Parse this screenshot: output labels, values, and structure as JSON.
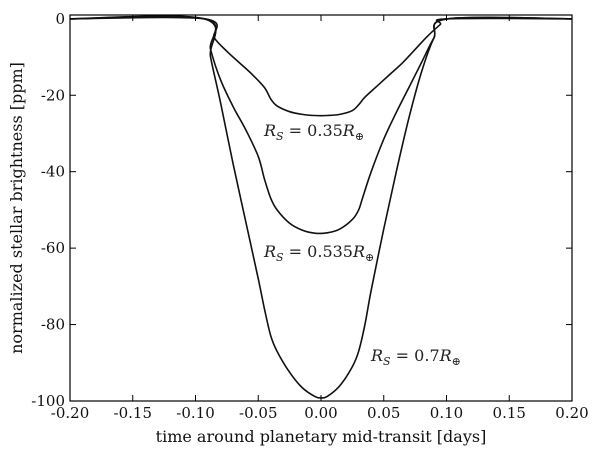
{
  "chart_data": {
    "type": "line",
    "xlabel": "time around planetary mid-transit [days]",
    "ylabel": "normalized stellar brightness [ppm]",
    "xlim": [
      -0.2,
      0.2
    ],
    "ylim": [
      -100,
      1
    ],
    "xticks": [
      -0.2,
      -0.15,
      -0.1,
      -0.05,
      0.0,
      0.05,
      0.1,
      0.15,
      0.2
    ],
    "xtick_labels": [
      "-0.20",
      "-0.15",
      "-0.10",
      "-0.05",
      "0.00",
      "0.05",
      "0.10",
      "0.15",
      "0.20"
    ],
    "yticks": [
      0,
      -20,
      -40,
      -60,
      -80,
      -100
    ],
    "ytick_labels": [
      "0",
      "-20",
      "-40",
      "-60",
      "-80",
      "-100"
    ],
    "grid": false,
    "series": [
      {
        "label": "R_S = 0.35R_⊕",
        "x": [
          -0.2,
          -0.093,
          -0.085,
          -0.075,
          -0.065,
          -0.055,
          -0.045,
          -0.04,
          -0.035,
          -0.025,
          -0.015,
          -0.005,
          0.005,
          0.015,
          0.025,
          0.03,
          0.035,
          0.045,
          0.055,
          0.065,
          0.075,
          0.085,
          0.095,
          0.101,
          0.2
        ],
        "y": [
          0,
          0,
          -5,
          -8.5,
          -11.5,
          -14.5,
          -18,
          -21,
          -22.8,
          -24.3,
          -25.0,
          -25.3,
          -25.3,
          -25.0,
          -24.0,
          -22.5,
          -20.5,
          -17.5,
          -14.5,
          -11.5,
          -8,
          -4.5,
          -1.5,
          0,
          0
        ]
      },
      {
        "label": "R_S = 0.535R_⊕",
        "x": [
          -0.2,
          -0.093,
          -0.088,
          -0.08,
          -0.07,
          -0.06,
          -0.05,
          -0.045,
          -0.04,
          -0.035,
          -0.025,
          -0.015,
          -0.005,
          0.005,
          0.015,
          0.025,
          0.03,
          0.033,
          0.04,
          0.05,
          0.06,
          0.07,
          0.08,
          0.09,
          0.101,
          0.2
        ],
        "y": [
          0,
          0,
          -8,
          -16,
          -23,
          -29,
          -36,
          -42,
          -47,
          -50,
          -53.5,
          -55.3,
          -56.1,
          -56.0,
          -55.0,
          -52.5,
          -50,
          -47,
          -40,
          -31.5,
          -24.5,
          -18,
          -11.5,
          -5,
          0,
          0
        ]
      },
      {
        "label": "R_S = 0.7R_⊕",
        "x": [
          -0.2,
          -0.093,
          -0.088,
          -0.08,
          -0.07,
          -0.06,
          -0.05,
          -0.045,
          -0.04,
          -0.035,
          -0.025,
          -0.015,
          -0.005,
          0.0,
          0.005,
          0.015,
          0.025,
          0.03,
          0.035,
          0.04,
          0.05,
          0.06,
          0.07,
          0.08,
          0.09,
          0.101,
          0.2
        ],
        "y": [
          0,
          0,
          -10,
          -22,
          -38,
          -53,
          -68,
          -76,
          -83,
          -87,
          -92.5,
          -96.5,
          -98.8,
          -99.2,
          -98.8,
          -96,
          -91,
          -87,
          -80,
          -71,
          -55,
          -40,
          -26,
          -14,
          -5,
          0,
          0
        ]
      }
    ]
  }
}
